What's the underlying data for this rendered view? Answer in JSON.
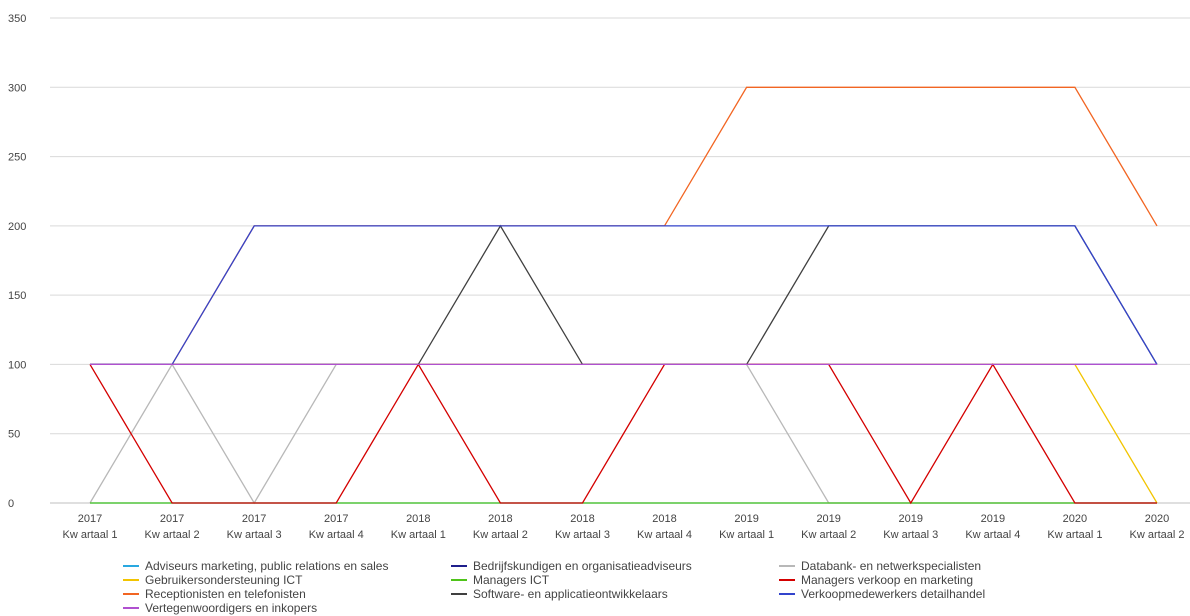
{
  "chart_data": {
    "type": "line",
    "title": "",
    "xlabel": "",
    "ylabel": "",
    "ylim": [
      0,
      350
    ],
    "yticks": [
      0,
      50,
      100,
      150,
      200,
      250,
      300,
      350
    ],
    "grid": true,
    "legend_position": "bottom",
    "categories": [
      [
        "2017",
        "Kw artaal 1"
      ],
      [
        "2017",
        "Kw artaal 2"
      ],
      [
        "2017",
        "Kw artaal 3"
      ],
      [
        "2017",
        "Kw artaal 4"
      ],
      [
        "2018",
        "Kw artaal 1"
      ],
      [
        "2018",
        "Kw artaal 2"
      ],
      [
        "2018",
        "Kw artaal 3"
      ],
      [
        "2018",
        "Kw artaal 4"
      ],
      [
        "2019",
        "Kw artaal 1"
      ],
      [
        "2019",
        "Kw artaal 2"
      ],
      [
        "2019",
        "Kw artaal 3"
      ],
      [
        "2019",
        "Kw artaal 4"
      ],
      [
        "2020",
        "Kw artaal 1"
      ],
      [
        "2020",
        "Kw artaal 2"
      ]
    ],
    "series": [
      {
        "name": "Adviseurs marketing, public relations en sales",
        "color": "#29a8e0",
        "values": [
          0,
          0,
          0,
          0,
          0,
          0,
          0,
          0,
          0,
          0,
          0,
          0,
          0,
          0
        ]
      },
      {
        "name": "Bedrijfskundigen en organisatieadviseurs",
        "color": "#1f1f8c",
        "values": [
          100,
          100,
          100,
          100,
          100,
          100,
          100,
          100,
          100,
          100,
          100,
          100,
          100,
          100
        ]
      },
      {
        "name": "Databank- en netwerkspecialisten",
        "color": "#b8b8b8",
        "values": [
          0,
          100,
          0,
          100,
          100,
          100,
          100,
          100,
          100,
          0,
          0,
          0,
          0,
          0
        ]
      },
      {
        "name": "Gebruikersondersteuning ICT",
        "color": "#f2c400",
        "values": [
          100,
          100,
          100,
          100,
          100,
          100,
          100,
          100,
          100,
          100,
          100,
          100,
          100,
          0
        ]
      },
      {
        "name": "Managers ICT",
        "color": "#4fc41a",
        "values": [
          0,
          0,
          0,
          0,
          0,
          0,
          0,
          0,
          0,
          0,
          0,
          0,
          0,
          0
        ]
      },
      {
        "name": "Managers verkoop en marketing",
        "color": "#d40000",
        "values": [
          100,
          0,
          0,
          0,
          100,
          0,
          0,
          100,
          100,
          100,
          0,
          100,
          0,
          0
        ]
      },
      {
        "name": "Receptionisten en telefonisten",
        "color": "#f26522",
        "values": [
          100,
          100,
          200,
          200,
          200,
          200,
          200,
          200,
          300,
          300,
          300,
          300,
          300,
          200
        ]
      },
      {
        "name": "Software- en applicatieontwikkelaars",
        "color": "#404040",
        "values": [
          100,
          100,
          100,
          100,
          100,
          200,
          100,
          100,
          100,
          200,
          200,
          200,
          200,
          100
        ]
      },
      {
        "name": "Verkoopmedewerkers detailhandel",
        "color": "#3344cc",
        "values": [
          100,
          100,
          200,
          200,
          200,
          200,
          200,
          200,
          200,
          200,
          200,
          200,
          200,
          100
        ]
      },
      {
        "name": "Vertegenwoordigers en inkopers",
        "color": "#b050d0",
        "values": [
          100,
          100,
          100,
          100,
          100,
          100,
          100,
          100,
          100,
          100,
          100,
          100,
          100,
          100
        ]
      }
    ]
  }
}
